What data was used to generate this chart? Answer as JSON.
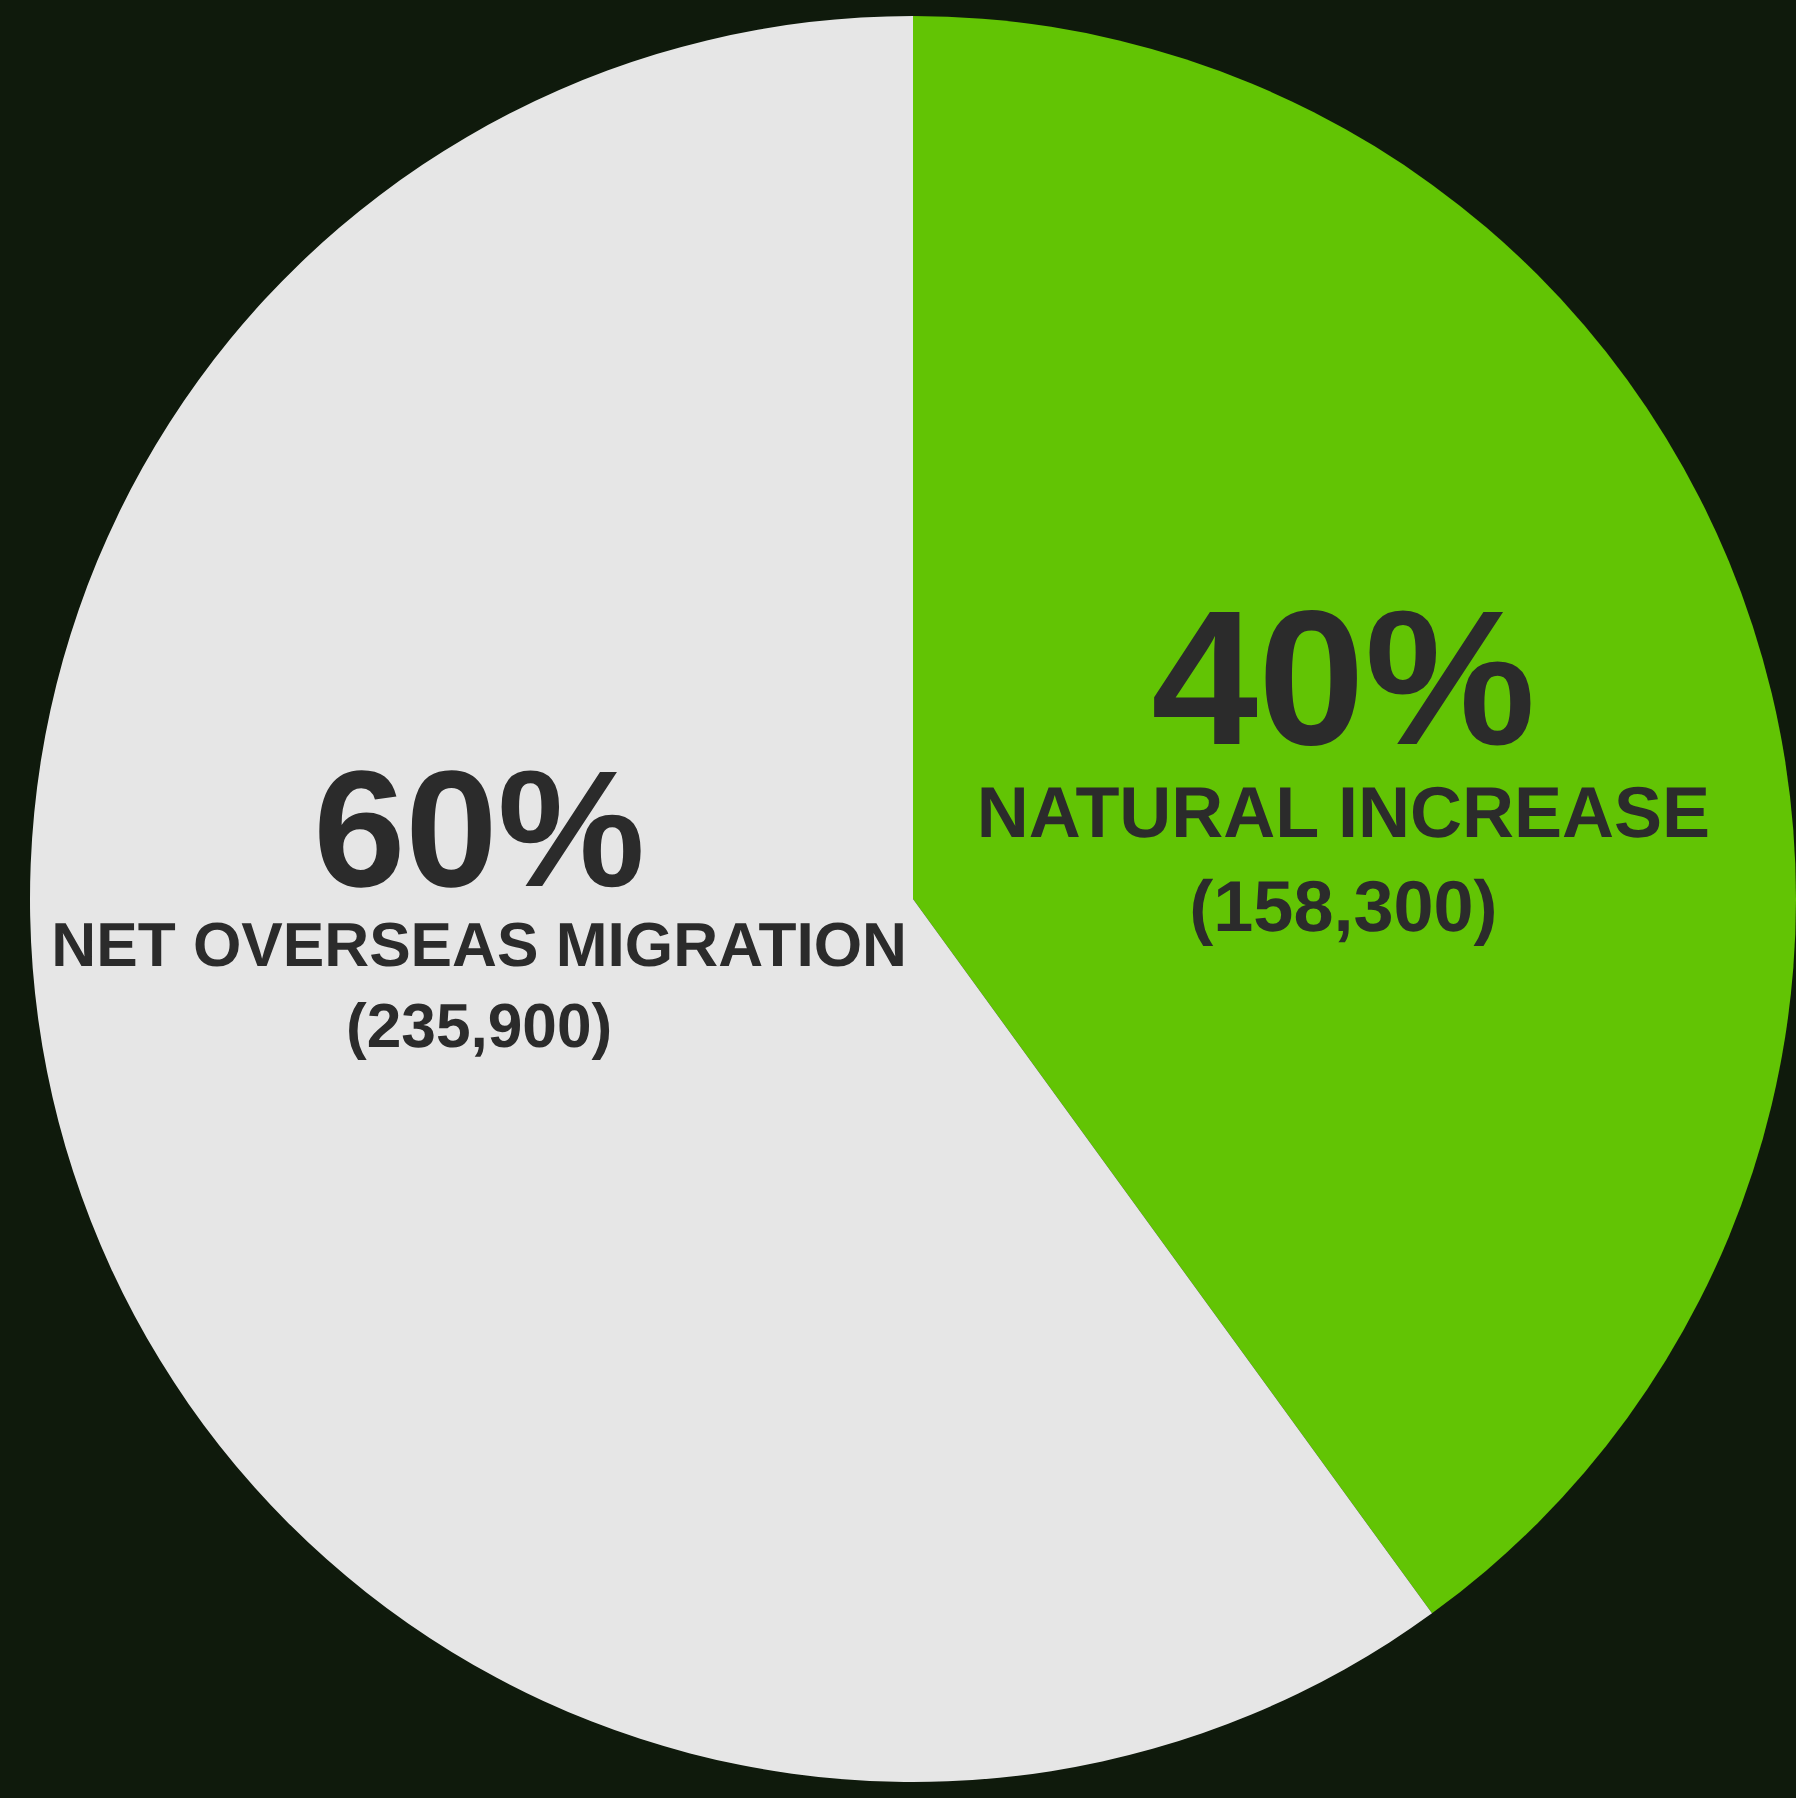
{
  "chart_data": {
    "type": "pie",
    "categories": [
      "NATURAL INCREASE (158,300)",
      "NET OVERSEAS MIGRATION (235,900)"
    ],
    "values": [
      40,
      60
    ],
    "value_labels": [
      "40%",
      "60%"
    ],
    "colors": [
      "#62c404",
      "#e6e6e6"
    ],
    "legend": false
  }
}
